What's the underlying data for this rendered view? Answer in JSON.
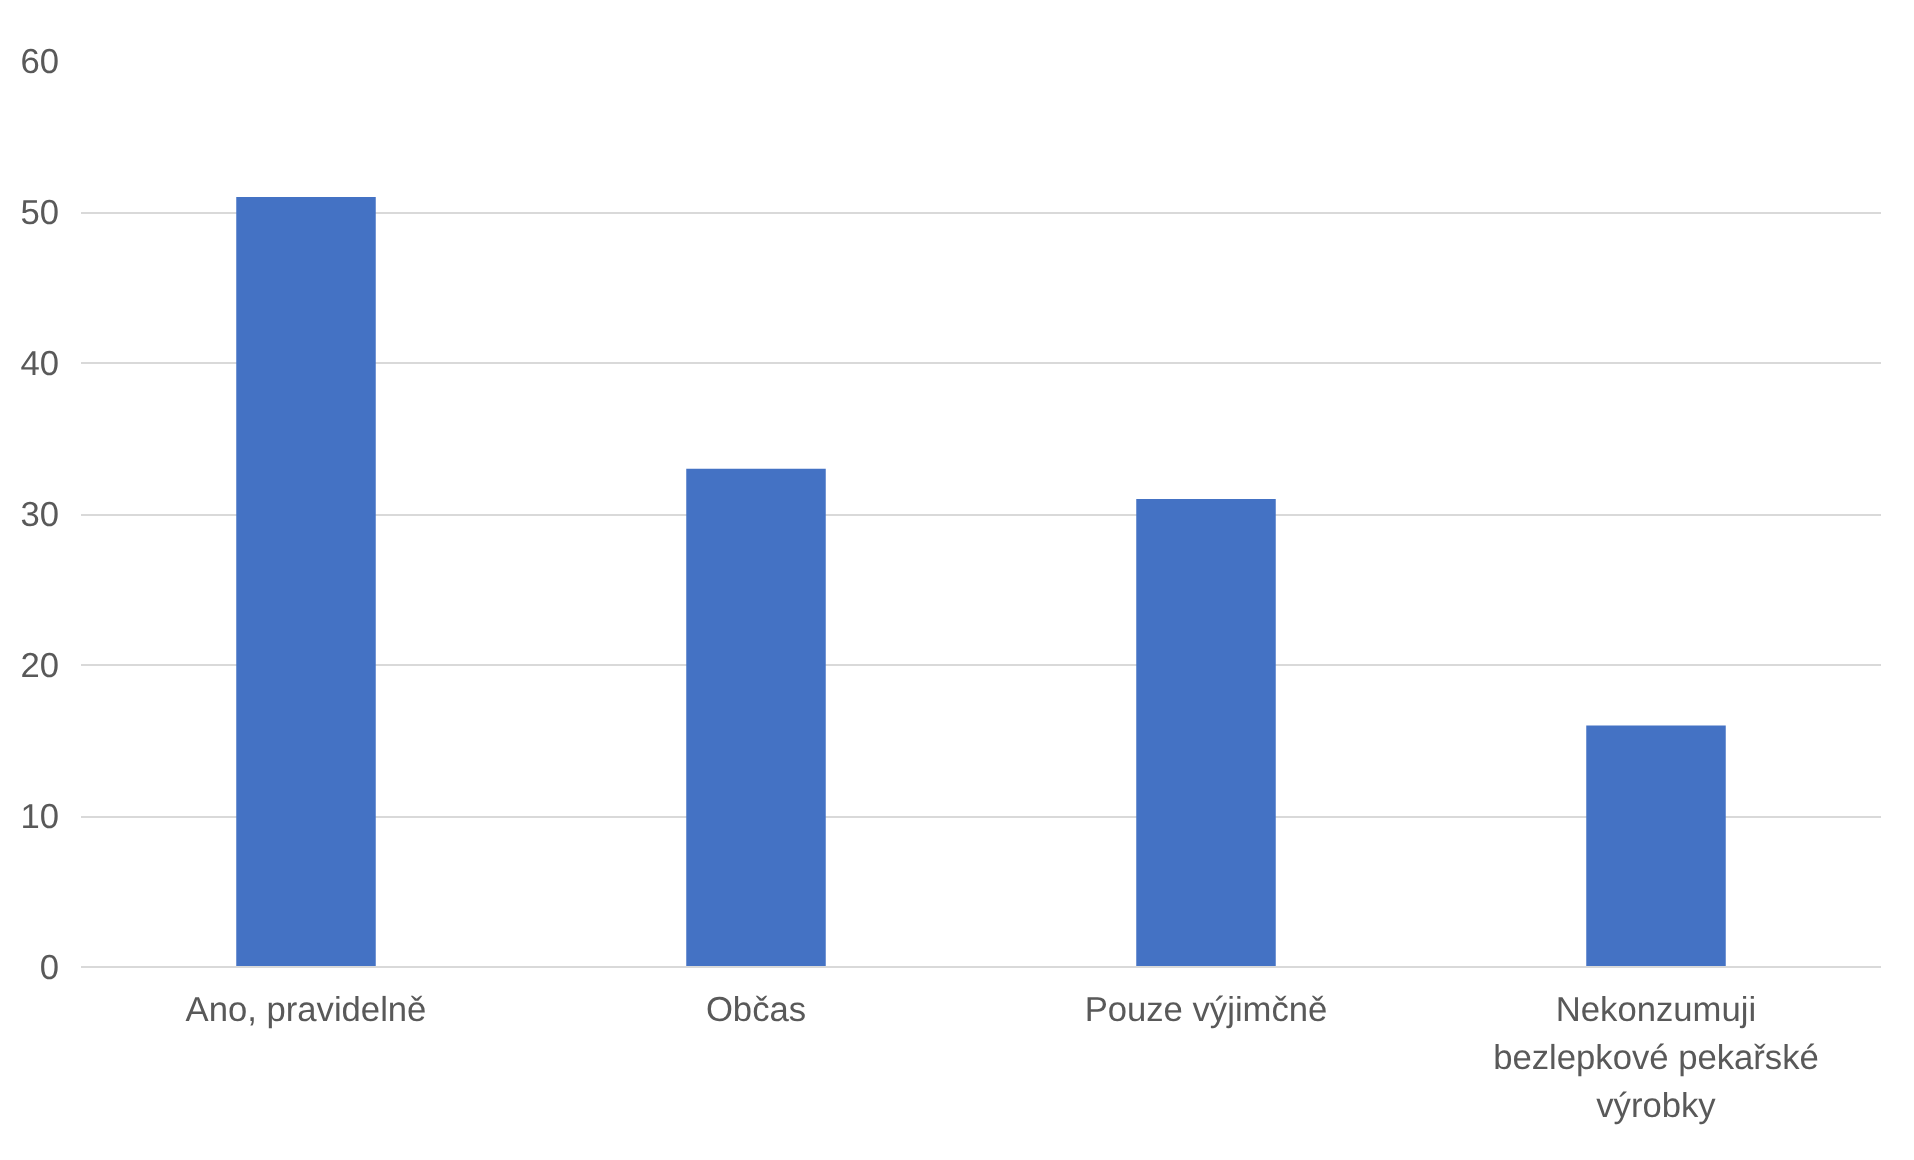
{
  "chart_data": {
    "type": "bar",
    "categories": [
      "Ano, pravidelně",
      "Občas",
      "Pouze výjimčně",
      "Nekonzumuji\nbezlepkové pekařské\nvýrobky"
    ],
    "values": [
      51,
      33,
      31,
      16
    ],
    "color": "#4472c4",
    "ylim": [
      0,
      60
    ],
    "yticks": [
      0,
      10,
      20,
      30,
      40,
      50,
      60
    ],
    "grid": "y"
  }
}
